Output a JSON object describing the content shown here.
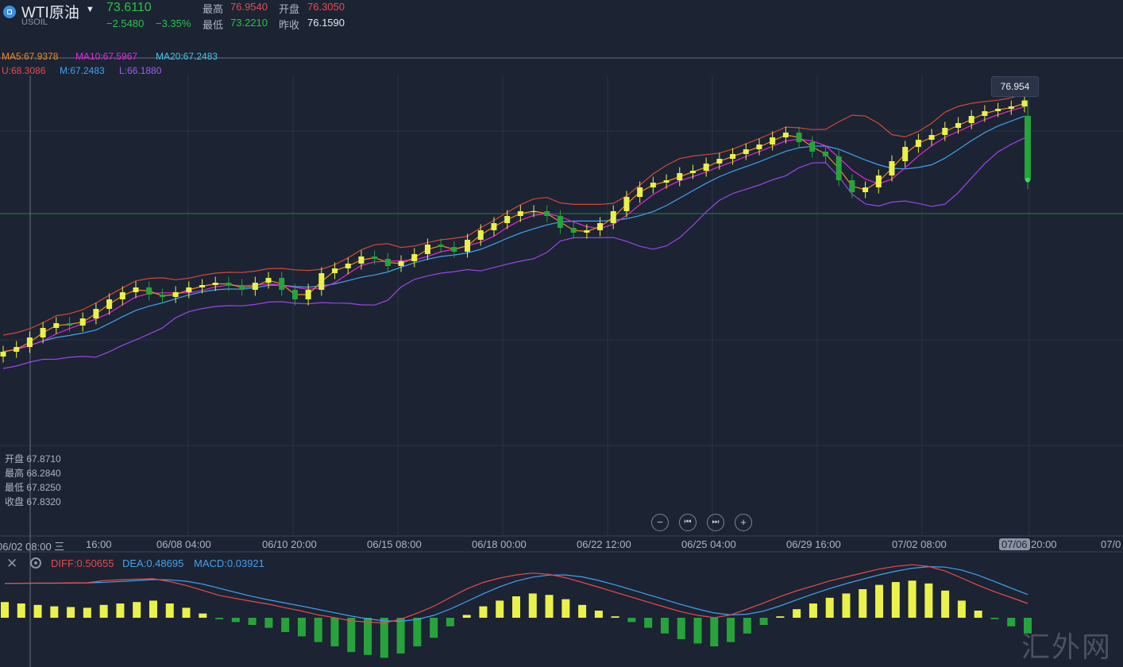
{
  "header": {
    "symbol": "WTI原油",
    "code": "USOIL",
    "price": "73.6110",
    "change": "−2.5480",
    "change_pct": "−3.35%",
    "high_label": "最高",
    "high_value": "76.9540",
    "open_label": "开盘",
    "open_value": "76.3050",
    "low_label": "最低",
    "low_value": "73.2210",
    "prev_close_label": "昨收",
    "prev_close_value": "76.1590"
  },
  "indicators": {
    "ma5": "MA5:67.9378",
    "ma10": "MA10:67.5967",
    "ma20": "MA20:67.2483",
    "boll_u": "U:68.3086",
    "boll_m": "M:67.2483",
    "boll_l": "L:66.1880"
  },
  "hover_ohlc": {
    "open": "开盘 67.8710",
    "high": "最高 68.2840",
    "low": "最低 67.8250",
    "close": "收盘 67.8320"
  },
  "tooltip_price": "76.954",
  "macd_legend": {
    "diff": "DIFF:0.50655",
    "dea": "DEA:0.48695",
    "macd": "MACD:0.03921"
  },
  "controls": {
    "zoom_out_icon": "minus-circle-icon",
    "first_icon": "skip-start-icon",
    "last_icon": "skip-end-icon",
    "zoom_in_icon": "plus-circle-icon"
  },
  "watermark": "汇外网",
  "colors": {
    "background": "#1c2333",
    "up_candle": "#eaf14a",
    "down_candle": "#27a33c",
    "ma5": "#f08a1e",
    "ma10": "#e02bd8",
    "ma20": "#3fa3f0",
    "boll_u": "#d24838",
    "boll_l": "#9a46e8",
    "diff": "#e94b4b",
    "dea": "#3fa3f0"
  },
  "chart_data": {
    "type": "candlestick",
    "x_tick_labels": [
      "06/02 08:00 三",
      "16:00",
      "06/08 04:00",
      "06/10 20:00",
      "06/15 08:00",
      "06/18 00:00",
      "06/22 12:00",
      "06/25 04:00",
      "06/29 16:00",
      "07/02 08:00",
      "07/06",
      "20:00",
      "07/0"
    ],
    "price_range": [
      62.5,
      78.0
    ],
    "close_points": [
      [
        0,
        66.4
      ],
      [
        10,
        66.6
      ],
      [
        20,
        67.0
      ],
      [
        30,
        67.4
      ],
      [
        40,
        67.6
      ],
      [
        50,
        67.5
      ],
      [
        60,
        67.8
      ],
      [
        70,
        68.2
      ],
      [
        80,
        68.6
      ],
      [
        90,
        68.9
      ],
      [
        100,
        69.1
      ],
      [
        110,
        68.8
      ],
      [
        120,
        68.7
      ],
      [
        130,
        68.9
      ],
      [
        140,
        69.1
      ],
      [
        150,
        69.2
      ],
      [
        160,
        69.3
      ],
      [
        170,
        69.2
      ],
      [
        180,
        69.0
      ],
      [
        190,
        69.3
      ],
      [
        200,
        69.5
      ],
      [
        210,
        69.0
      ],
      [
        220,
        68.6
      ],
      [
        230,
        69.0
      ],
      [
        240,
        69.7
      ],
      [
        250,
        69.9
      ],
      [
        260,
        70.1
      ],
      [
        270,
        70.4
      ],
      [
        280,
        70.3
      ],
      [
        290,
        70.0
      ],
      [
        300,
        70.2
      ],
      [
        310,
        70.5
      ],
      [
        320,
        70.9
      ],
      [
        330,
        70.8
      ],
      [
        340,
        70.6
      ],
      [
        350,
        71.1
      ],
      [
        360,
        71.5
      ],
      [
        370,
        71.8
      ],
      [
        380,
        72.1
      ],
      [
        390,
        72.3
      ],
      [
        400,
        72.3
      ],
      [
        410,
        72.1
      ],
      [
        420,
        71.6
      ],
      [
        430,
        71.4
      ],
      [
        440,
        71.5
      ],
      [
        450,
        71.8
      ],
      [
        460,
        72.3
      ],
      [
        470,
        72.9
      ],
      [
        480,
        73.3
      ],
      [
        490,
        73.5
      ],
      [
        500,
        73.6
      ],
      [
        510,
        73.9
      ],
      [
        520,
        74.0
      ],
      [
        530,
        74.3
      ],
      [
        540,
        74.5
      ],
      [
        550,
        74.7
      ],
      [
        560,
        74.9
      ],
      [
        570,
        75.1
      ],
      [
        580,
        75.4
      ],
      [
        590,
        75.6
      ],
      [
        600,
        75.2
      ],
      [
        610,
        74.8
      ],
      [
        620,
        74.6
      ],
      [
        630,
        73.6
      ],
      [
        640,
        73.1
      ],
      [
        650,
        73.3
      ],
      [
        660,
        73.8
      ],
      [
        670,
        74.4
      ],
      [
        680,
        75.0
      ],
      [
        690,
        75.3
      ],
      [
        700,
        75.5
      ],
      [
        710,
        75.8
      ],
      [
        720,
        76.0
      ],
      [
        730,
        76.3
      ],
      [
        740,
        76.5
      ],
      [
        750,
        76.6
      ],
      [
        760,
        76.7
      ],
      [
        770,
        76.95
      ]
    ],
    "macd_histogram": [
      0.22,
      0.2,
      0.18,
      0.16,
      0.15,
      0.14,
      0.18,
      0.2,
      0.22,
      0.24,
      0.2,
      0.14,
      0.06,
      -0.02,
      -0.06,
      -0.1,
      -0.14,
      -0.2,
      -0.26,
      -0.34,
      -0.4,
      -0.48,
      -0.52,
      -0.56,
      -0.5,
      -0.4,
      -0.28,
      -0.12,
      0.04,
      0.16,
      0.24,
      0.3,
      0.34,
      0.32,
      0.26,
      0.18,
      0.1,
      0.02,
      -0.06,
      -0.14,
      -0.22,
      -0.3,
      -0.36,
      -0.4,
      -0.34,
      -0.22,
      -0.1,
      0.02,
      0.12,
      0.2,
      0.28,
      0.34,
      0.4,
      0.46,
      0.5,
      0.52,
      0.48,
      0.38,
      0.24,
      0.1,
      -0.02,
      -0.12,
      -0.22
    ]
  }
}
